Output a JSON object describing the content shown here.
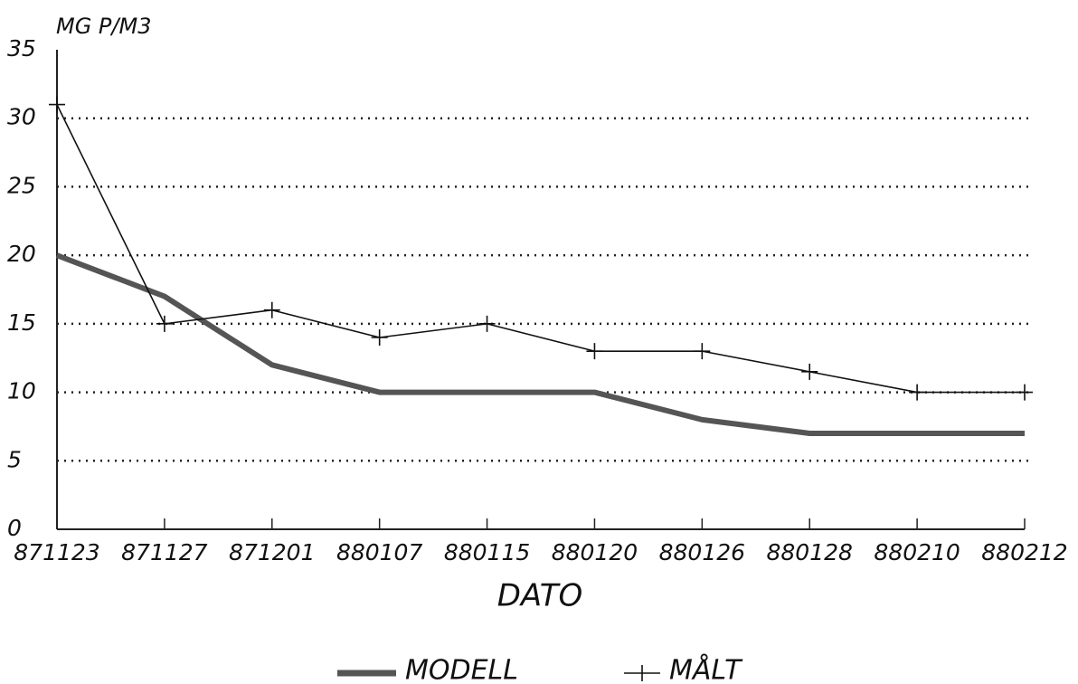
{
  "chart_data": {
    "type": "line",
    "y_label": "MG P/M3",
    "x_label": "DATO",
    "categories": [
      "871123",
      "871127",
      "871201",
      "880107",
      "880115",
      "880120",
      "880126",
      "880128",
      "880210",
      "880212"
    ],
    "series": [
      {
        "name": "MODELL",
        "color": "#555555",
        "values": [
          20,
          17,
          12,
          10,
          10,
          10,
          8,
          7,
          7,
          7
        ]
      },
      {
        "name": "MÅLT",
        "color": "#111111",
        "values": [
          31,
          15,
          16,
          14,
          15,
          13,
          13,
          11.5,
          10,
          10
        ]
      }
    ],
    "ylim": [
      0,
      35
    ],
    "yticks": [
      0,
      5,
      10,
      15,
      20,
      25,
      30,
      35
    ],
    "grid": true
  }
}
